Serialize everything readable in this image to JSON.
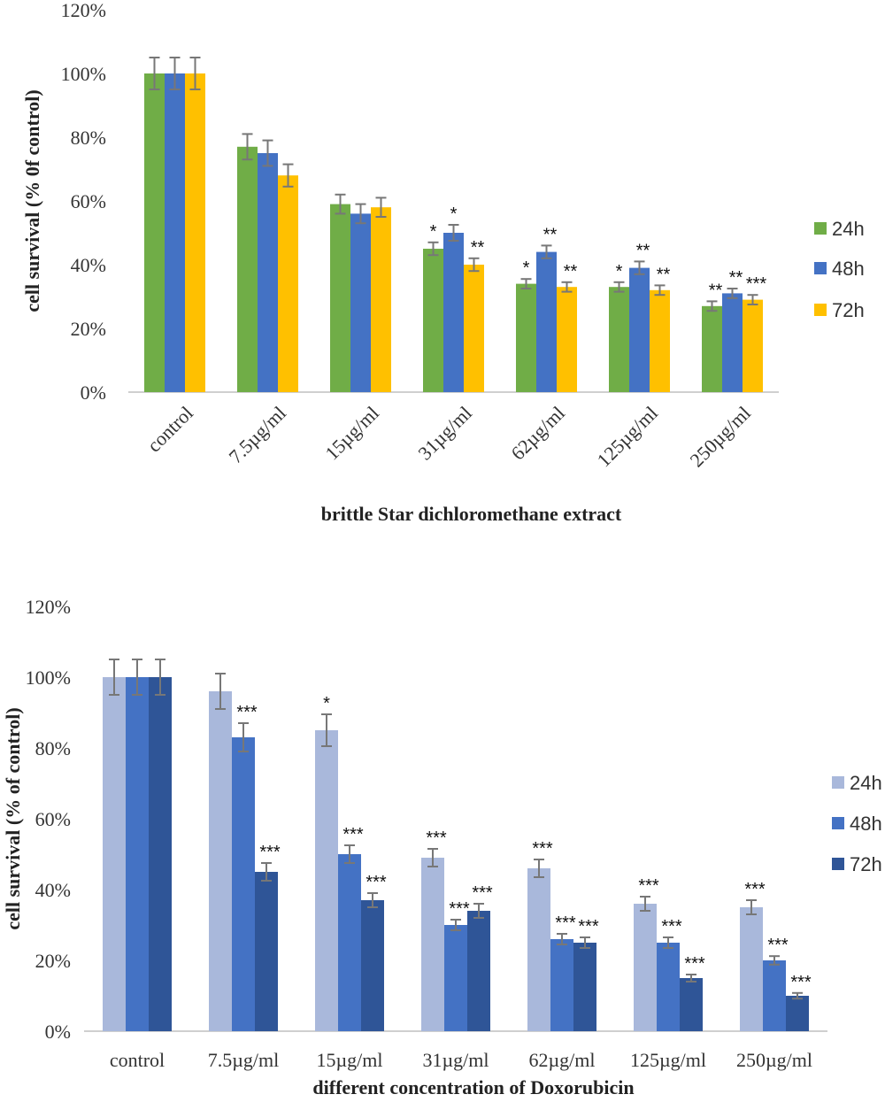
{
  "chart_data": [
    {
      "type": "bar",
      "title": "",
      "xlabel": "brittle Star dichloromethane extract",
      "ylabel": "cell survival (%  0f control)",
      "ylim": [
        0,
        120
      ],
      "y_ticks": [
        "0%",
        "20%",
        "40%",
        "60%",
        "80%",
        "100%",
        "120%"
      ],
      "grid": false,
      "legend_position": "right",
      "categories": [
        "control",
        "7.5µg/ml",
        "15µg/ml",
        "31µg/ml",
        "62µg/ml",
        "125µg/ml",
        "250µg/ml"
      ],
      "series": [
        {
          "name": "24h",
          "color": "#70ad47",
          "values": [
            100,
            77,
            59,
            45,
            34,
            33,
            27
          ],
          "errors": [
            5,
            4,
            3,
            2,
            1.5,
            1.5,
            1.5
          ],
          "significance": [
            "",
            "",
            "",
            "*",
            "*",
            "*",
            "**"
          ]
        },
        {
          "name": "48h",
          "color": "#4472c4",
          "values": [
            100,
            75,
            56,
            50,
            44,
            39,
            31
          ],
          "errors": [
            5,
            4,
            3,
            2.5,
            2,
            2,
            1.5
          ],
          "significance": [
            "",
            "",
            "",
            "*",
            "**",
            "**",
            "**"
          ]
        },
        {
          "name": "72h",
          "color": "#ffc000",
          "values": [
            100,
            68,
            58,
            40,
            33,
            32,
            29
          ],
          "errors": [
            5,
            3.5,
            3,
            2,
            1.5,
            1.5,
            1.5
          ],
          "significance": [
            "",
            "",
            "",
            "**",
            "**",
            "**",
            "***"
          ]
        }
      ]
    },
    {
      "type": "bar",
      "title": "",
      "xlabel": "different concentration of Doxorubicin",
      "ylabel": "cell survival (% of control)",
      "ylim": [
        0,
        120
      ],
      "y_ticks": [
        "0%",
        "20%",
        "40%",
        "60%",
        "80%",
        "100%",
        "120%"
      ],
      "grid": false,
      "legend_position": "right",
      "categories": [
        "control",
        "7.5µg/ml",
        "15µg/ml",
        "31µg/ml",
        "62µg/ml",
        "125µg/ml",
        "250µg/ml"
      ],
      "series": [
        {
          "name": "24h",
          "color": "#a9b8db",
          "values": [
            100,
            96,
            85,
            49,
            46,
            36,
            35
          ],
          "errors": [
            5,
            5,
            4.5,
            2.5,
            2.5,
            2,
            2
          ],
          "significance": [
            "",
            "",
            "*",
            "***",
            "***",
            "***",
            "***"
          ]
        },
        {
          "name": "48h",
          "color": "#4472c4",
          "values": [
            100,
            83,
            50,
            30,
            26,
            25,
            20
          ],
          "errors": [
            5,
            4,
            2.5,
            1.5,
            1.5,
            1.5,
            1.2
          ],
          "significance": [
            "",
            "***",
            "***",
            "***",
            "***",
            "***",
            "***"
          ]
        },
        {
          "name": "72h",
          "color": "#2f5597",
          "values": [
            100,
            45,
            37,
            34,
            25,
            15,
            10
          ],
          "errors": [
            5,
            2.5,
            2,
            2,
            1.5,
            1,
            0.8
          ],
          "significance": [
            "",
            "***",
            "***",
            "***",
            "***",
            "***",
            "***"
          ]
        }
      ]
    }
  ]
}
